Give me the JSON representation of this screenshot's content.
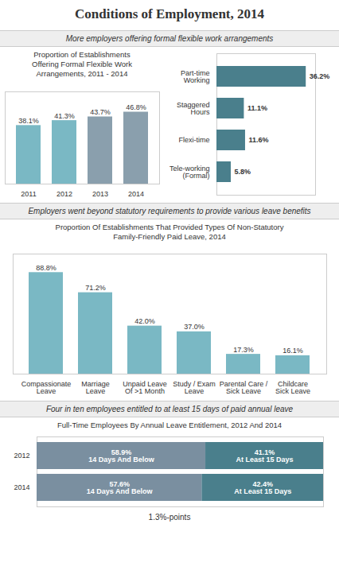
{
  "title": "Conditions of Employment, 2014",
  "chart_data": [
    {
      "type": "bar",
      "subtitle": "More employers offering formal flexible work arrangements",
      "title": "Proportion of Establishments\nOffering Formal Flexible Work\nArrangements, 2011 - 2014",
      "categories": [
        "2011",
        "2012",
        "2013",
        "2014"
      ],
      "values": [
        38.1,
        41.3,
        43.7,
        46.8
      ],
      "value_labels": [
        "38.1%",
        "41.3%",
        "43.7%",
        "46.8%"
      ],
      "colors": [
        "#7ab8c4",
        "#7ab8c4",
        "#8a9fad",
        "#8a9fad"
      ],
      "ylim": [
        0,
        60
      ],
      "data_labels": true,
      "tick_labels": "x"
    },
    {
      "type": "bar",
      "orientation": "horizontal",
      "categories": [
        "Part-time\nWorking",
        "Staggered\nHours",
        "Flexi-time",
        "Tele-working\n(Formal)"
      ],
      "values": [
        36.2,
        11.1,
        11.6,
        5.8
      ],
      "value_labels": [
        "36.2%",
        "11.1%",
        "11.6%",
        "5.8%"
      ],
      "color": "#4a7f8c",
      "xlim": [
        0,
        40
      ],
      "data_labels": true,
      "tick_labels": "y"
    },
    {
      "type": "bar",
      "subtitle": "Employers went beyond statutory requirements to provide various leave benefits",
      "title": "Proportion Of Establishments That Provided Types Of Non-Statutory\nFamily-Friendly Paid Leave, 2014",
      "categories": [
        "Compassionate\nLeave",
        "Marriage\nLeave",
        "Unpaid Leave\nOf >1 Month",
        "Study / Exam\nLeave",
        "Parental Care /\nSick Leave",
        "Childcare\nSick Leave"
      ],
      "values": [
        88.8,
        71.2,
        42.0,
        37.0,
        17.3,
        16.1
      ],
      "value_labels": [
        "88.8%",
        "71.2%",
        "42.0%",
        "37.0%",
        "17.3%",
        "16.1%"
      ],
      "color": "#7ab8c4",
      "ylim": [
        0,
        105
      ],
      "data_labels": true,
      "tick_labels": "x"
    },
    {
      "type": "bar",
      "subtitle": "Four in ten employees entitled to at least 15 days of paid annual leave",
      "title": "Full-Time Employees By Annual Leave Entitlement, 2012 And 2014",
      "categories": [
        "2012",
        "2014"
      ],
      "series": [
        {
          "name": "14 Days And Below",
          "color": "#7a8fa0",
          "values": [
            58.9,
            57.6
          ],
          "value_labels": [
            "58.9%",
            "57.6%"
          ]
        },
        {
          "name": "At Least 15 Days",
          "color": "#4a7f8c",
          "values": [
            41.1,
            42.4
          ],
          "value_labels": [
            "41.1%",
            "42.4%"
          ]
        }
      ],
      "stacked": true,
      "orientation": "horizontal",
      "xlim": [
        0,
        100
      ],
      "data_labels": true,
      "tick_labels": "y",
      "annotations": [
        "1.3%-points"
      ]
    }
  ]
}
